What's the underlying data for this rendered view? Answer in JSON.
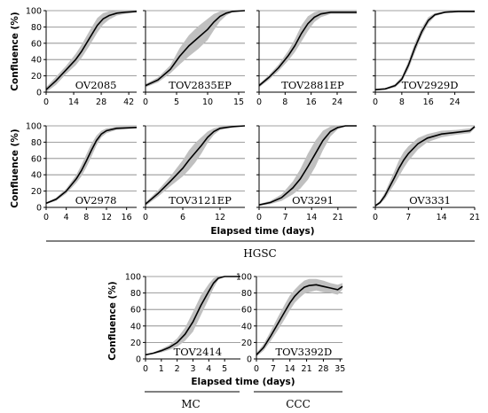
{
  "figure": {
    "ylabel": "Confluence (%)",
    "xlabel": "Elapsed time (days)",
    "groups": [
      {
        "label": "HGSC"
      },
      {
        "label": "MC"
      },
      {
        "label": "CCC"
      }
    ],
    "colors": {
      "mean": "#000000",
      "band": "#c0c0c0",
      "grid": "#808080"
    }
  },
  "chart_data": [
    {
      "type": "line",
      "title": "OV2085",
      "xlim": [
        0,
        46
      ],
      "xticks": [
        0,
        14,
        28,
        42
      ],
      "ylim": [
        0,
        100
      ],
      "yticks": [
        0,
        20,
        40,
        60,
        80,
        100
      ],
      "grid": "horizontal",
      "group": "HGSC",
      "x": [
        0,
        5,
        10,
        15,
        18,
        22,
        26,
        29,
        32,
        36,
        40,
        46
      ],
      "mean": [
        3,
        14,
        27,
        40,
        50,
        66,
        82,
        90,
        94,
        97,
        98,
        99
      ],
      "band": [
        3,
        5,
        5,
        7,
        8,
        9,
        9,
        7,
        5,
        3,
        2,
        1
      ]
    },
    {
      "type": "line",
      "title": "TOV2835EP",
      "xlim": [
        0,
        16
      ],
      "xticks": [
        0,
        5,
        10,
        15
      ],
      "ylim": [
        0,
        100
      ],
      "yticks": [
        0,
        20,
        40,
        60,
        80,
        100
      ],
      "grid": "horizontal",
      "group": "HGSC",
      "x": [
        0,
        2,
        4,
        5.5,
        7,
        8.5,
        10,
        11,
        12,
        13,
        14,
        16
      ],
      "mean": [
        8,
        15,
        28,
        44,
        57,
        67,
        77,
        86,
        93,
        97,
        99,
        100
      ],
      "band": [
        2,
        3,
        5,
        10,
        13,
        14,
        13,
        10,
        6,
        3,
        1,
        0
      ]
    },
    {
      "type": "line",
      "title": "TOV2881EP",
      "xlim": [
        0,
        30
      ],
      "xticks": [
        0,
        8,
        16,
        24
      ],
      "ylim": [
        0,
        100
      ],
      "yticks": [
        0,
        20,
        40,
        60,
        80,
        100
      ],
      "grid": "horizontal",
      "group": "HGSC",
      "x": [
        0,
        3,
        6,
        9,
        11,
        13,
        15,
        17,
        19,
        22,
        26,
        30
      ],
      "mean": [
        8,
        18,
        30,
        45,
        57,
        72,
        84,
        92,
        96,
        98,
        98,
        98
      ],
      "band": [
        2,
        3,
        4,
        6,
        8,
        10,
        9,
        6,
        4,
        2,
        2,
        2
      ]
    },
    {
      "type": "line",
      "title": "TOV2929D",
      "xlim": [
        0,
        30
      ],
      "xticks": [
        0,
        8,
        16,
        24
      ],
      "ylim": [
        0,
        100
      ],
      "yticks": [
        0,
        20,
        40,
        60,
        80,
        100
      ],
      "grid": "horizontal",
      "group": "HGSC",
      "x": [
        0,
        3,
        6,
        8,
        10,
        12,
        14,
        16,
        18,
        21,
        25,
        30
      ],
      "mean": [
        3,
        4,
        8,
        16,
        33,
        55,
        74,
        88,
        95,
        98,
        99,
        99
      ],
      "band": [
        1,
        1,
        2,
        3,
        5,
        6,
        5,
        4,
        2,
        1,
        1,
        1
      ]
    },
    {
      "type": "line",
      "title": "OV2978",
      "xlim": [
        0,
        18
      ],
      "xticks": [
        0,
        4,
        8,
        12,
        16
      ],
      "ylim": [
        0,
        100
      ],
      "yticks": [
        0,
        20,
        40,
        60,
        80,
        100
      ],
      "grid": "horizontal",
      "group": "HGSC",
      "x": [
        0,
        2,
        4,
        6,
        7,
        8,
        9,
        10,
        11,
        12,
        14,
        18
      ],
      "mean": [
        5,
        10,
        20,
        35,
        45,
        57,
        70,
        82,
        90,
        94,
        97,
        98
      ],
      "band": [
        1,
        2,
        3,
        5,
        7,
        8,
        8,
        6,
        4,
        3,
        2,
        1
      ]
    },
    {
      "type": "line",
      "title": "TOV3121EP",
      "xlim": [
        0,
        16
      ],
      "xticks": [
        0,
        6,
        12
      ],
      "ylim": [
        0,
        100
      ],
      "yticks": [
        0,
        20,
        40,
        60,
        80,
        100
      ],
      "grid": "horizontal",
      "group": "HGSC",
      "x": [
        0,
        2,
        4,
        6,
        7,
        8,
        9,
        10,
        11,
        12,
        14,
        16
      ],
      "mean": [
        4,
        17,
        32,
        48,
        58,
        67,
        76,
        86,
        93,
        97,
        99,
        100
      ],
      "band": [
        2,
        4,
        6,
        10,
        12,
        12,
        10,
        7,
        4,
        2,
        1,
        0
      ]
    },
    {
      "type": "line",
      "title": "OV3291",
      "xlim": [
        0,
        26
      ],
      "xticks": [
        0,
        7,
        14,
        21
      ],
      "ylim": [
        0,
        100
      ],
      "yticks": [
        0,
        20,
        40,
        60,
        80,
        100
      ],
      "grid": "horizontal",
      "group": "HGSC",
      "x": [
        0,
        3,
        6,
        9,
        11,
        13,
        15,
        17,
        19,
        21,
        23,
        26
      ],
      "mean": [
        3,
        6,
        12,
        24,
        35,
        50,
        66,
        82,
        93,
        98,
        100,
        100
      ],
      "band": [
        1,
        2,
        4,
        8,
        12,
        16,
        16,
        12,
        6,
        2,
        1,
        0
      ]
    },
    {
      "type": "line",
      "title": "OV3331",
      "xlim": [
        0,
        21
      ],
      "xticks": [
        0,
        7,
        14,
        21
      ],
      "ylim": [
        0,
        100
      ],
      "yticks": [
        0,
        20,
        40,
        60,
        80,
        100
      ],
      "grid": "horizontal",
      "group": "HGSC",
      "x": [
        0,
        1,
        2,
        3,
        4,
        5,
        6,
        7,
        9,
        11,
        14,
        17,
        20,
        21
      ],
      "mean": [
        2,
        6,
        14,
        25,
        36,
        48,
        58,
        66,
        78,
        85,
        90,
        92,
        94,
        99
      ],
      "band": [
        1,
        2,
        4,
        6,
        8,
        10,
        10,
        9,
        7,
        5,
        4,
        3,
        3,
        2
      ]
    },
    {
      "type": "line",
      "title": "TOV2414",
      "xlim": [
        0,
        6
      ],
      "xticks": [
        0,
        1,
        2,
        3,
        4,
        5
      ],
      "ylim": [
        0,
        100
      ],
      "yticks": [
        0,
        20,
        40,
        60,
        80,
        100
      ],
      "grid": "horizontal",
      "group": "MC",
      "x": [
        0,
        0.5,
        1,
        1.5,
        2,
        2.5,
        3,
        3.5,
        4,
        4.3,
        4.6,
        5,
        6
      ],
      "mean": [
        5,
        7,
        10,
        14,
        20,
        30,
        45,
        65,
        82,
        92,
        98,
        100,
        100
      ],
      "band": [
        1,
        1,
        2,
        3,
        5,
        8,
        12,
        12,
        9,
        6,
        2,
        0,
        0
      ]
    },
    {
      "type": "line",
      "title": "TOV3392D",
      "xlim": [
        0,
        36
      ],
      "xticks": [
        0,
        7,
        14,
        21,
        28,
        35
      ],
      "ylim": [
        0,
        100
      ],
      "yticks": [
        0,
        20,
        40,
        60,
        80,
        100
      ],
      "grid": "horizontal",
      "group": "CCC",
      "x": [
        0,
        3,
        6,
        9,
        12,
        14,
        16,
        18,
        20,
        22,
        25,
        28,
        31,
        34,
        36
      ],
      "mean": [
        5,
        14,
        28,
        43,
        58,
        68,
        76,
        82,
        87,
        89,
        90,
        88,
        86,
        84,
        88
      ],
      "band": [
        2,
        4,
        6,
        8,
        9,
        9,
        8,
        8,
        8,
        8,
        7,
        7,
        6,
        6,
        4
      ]
    }
  ]
}
